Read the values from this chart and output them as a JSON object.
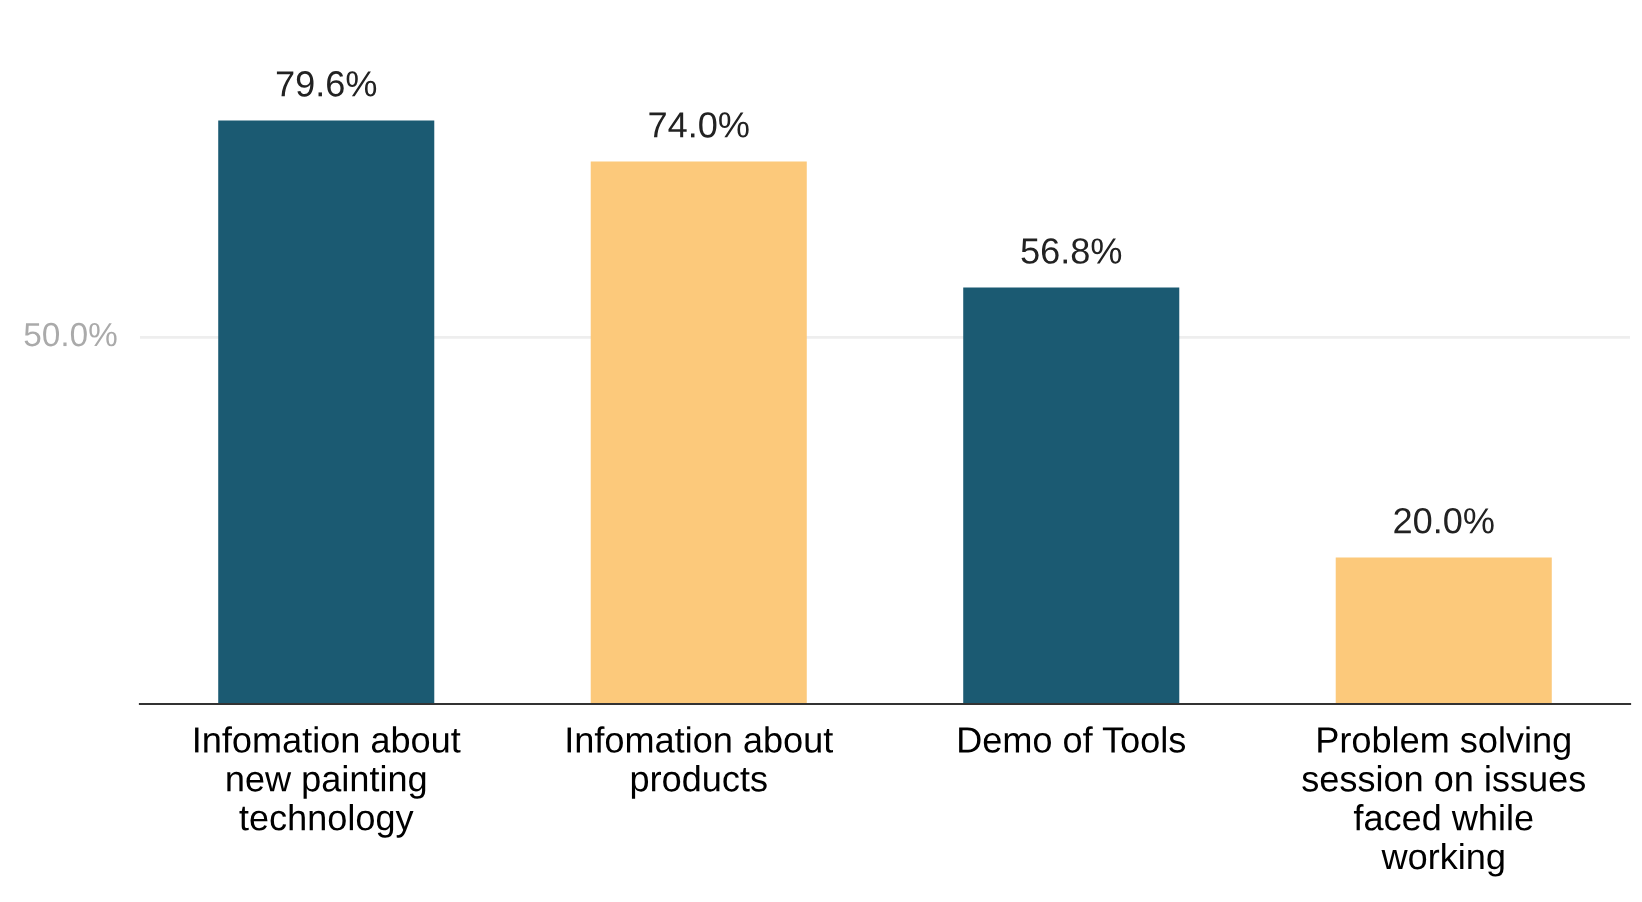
{
  "chart_data": {
    "type": "bar",
    "categories": [
      "Infomation about\nnew painting\ntechnology",
      "Infomation about\nproducts",
      "Demo of Tools",
      "Problem solving\nsession on issues\nfaced while\nworking"
    ],
    "values": [
      79.6,
      74.0,
      56.8,
      20.0
    ],
    "colors": [
      "#1b5a72",
      "#fcc97b",
      "#1b5a72",
      "#fcc97b"
    ],
    "value_labels": [
      "79.6%",
      "74.0%",
      "56.8%",
      "20.0%"
    ],
    "ref_lines": [
      {
        "axis": "y",
        "value": 50,
        "label": "50.0%",
        "color": "#eeeeee"
      }
    ],
    "legend": false
  }
}
